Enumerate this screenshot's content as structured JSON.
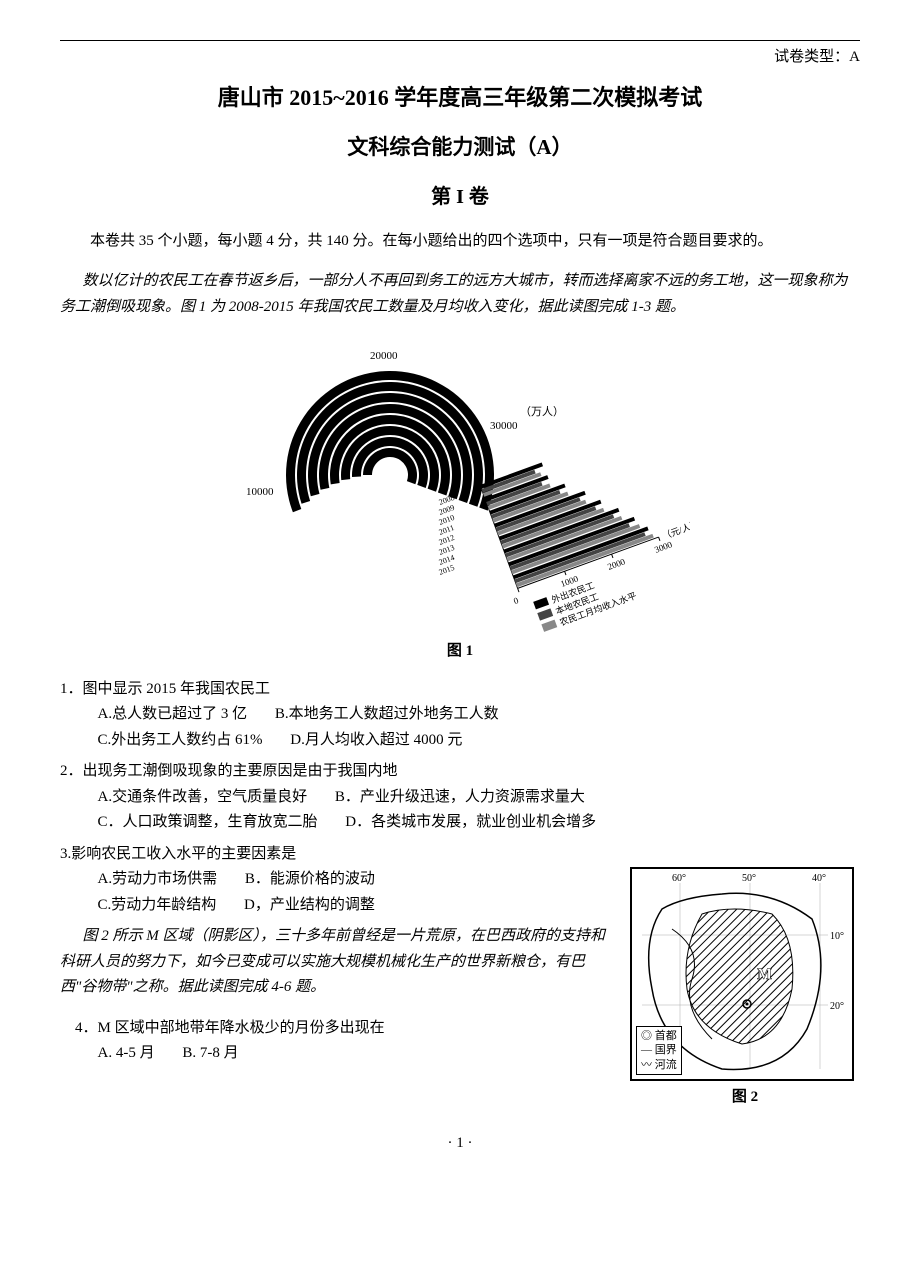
{
  "header": {
    "paper_type": "试卷类型：A",
    "title_main": "唐山市 2015~2016 学年度高三年级第二次模拟考试",
    "title_sub": "文科综合能力测试（A）",
    "section_label": "第 I 卷"
  },
  "intro": "本卷共 35 个小题，每小题 4 分，共 140 分。在每小题给出的四个选项中，只有一项是符合题目要求的。",
  "passage1": "数以亿计的农民工在春节返乡后，一部分人不再回到务工的远方大城市，转而选择离家不远的务工地，这一现象称为务工潮倒吸现象。图 1 为 2008-2015 年我国农民工数量及月均收入变化，据此读图完成 1-3 题。",
  "figure1": {
    "label": "图 1",
    "radial_axis_ticks": [
      10000,
      20000,
      30000
    ],
    "radial_unit": "（万人）",
    "bar_axis_ticks": [
      0,
      1000,
      2000,
      3000
    ],
    "bar_unit": "（元/人）",
    "years": [
      "2008",
      "2009",
      "2010",
      "2011",
      "2012",
      "2013",
      "2014",
      "2015"
    ],
    "radial_values": [
      14000,
      14500,
      15300,
      16000,
      16300,
      16600,
      16800,
      17000
    ],
    "bar_series": {
      "out_workers": [
        1400,
        1420,
        1700,
        2050,
        2300,
        2600,
        2850,
        3050
      ],
      "local_workers": [
        1200,
        1250,
        1550,
        1900,
        2150,
        2450,
        2700,
        2950
      ],
      "monthly_income": [
        1300,
        1400,
        1700,
        2000,
        2300,
        2600,
        2900,
        3100
      ]
    },
    "legend": [
      "外出农民工",
      "本地农民工",
      "农民工月均收入水平"
    ],
    "colors": {
      "arc": "#000000",
      "bar_out": "#000000",
      "bar_local": "#444444",
      "bar_income": "#888888",
      "text": "#000000"
    },
    "bg": "#ffffff"
  },
  "q1": {
    "stem": "1．图中显示 2015 年我国农民工",
    "A": "A.总人数已超过了 3 亿",
    "B": "B.本地务工人数超过外地务工人数",
    "C": "C.外出务工人数约占 61%",
    "D": "D.月人均收入超过 4000 元"
  },
  "q2": {
    "stem": "2．出现务工潮倒吸现象的主要原因是由于我国内地",
    "A": "A.交通条件改善，空气质量良好",
    "B": "B．产业升级迅速，人力资源需求量大",
    "C": "C．人口政策调整，生育放宽二胎",
    "D": "D．各类城市发展，就业创业机会增多"
  },
  "q3": {
    "stem": "3.影响农民工收入水平的主要因素是",
    "A": "A.劳动力市场供需",
    "B": "B．能源价格的波动",
    "C": "C.劳动力年龄结构",
    "D": "D，产业结构的调整"
  },
  "passage2": "图 2 所示 M 区域（阴影区），三十多年前曾经是一片荒原，在巴西政府的支持和科研人员的努力下，如今已变成可以实施大规模机械化生产的世界新粮仓，有巴西\"谷物带\"之称。据此读图完成 4-6 题。",
  "figure2": {
    "label": "图 2",
    "lon_ticks": [
      "60°",
      "50°",
      "40°"
    ],
    "lat_ticks": [
      "10°",
      "20°"
    ],
    "region_label": "M",
    "legend": {
      "capital": "首都",
      "border": "国界",
      "river": "河流"
    },
    "colors": {
      "border": "#000000",
      "hatch": "#000000",
      "label": "#000000"
    }
  },
  "q4": {
    "stem": "4．M 区域中部地带年降水极少的月份多出现在",
    "A": "A. 4-5 月",
    "B": "B. 7-8 月"
  },
  "page_number": "· 1 ·"
}
